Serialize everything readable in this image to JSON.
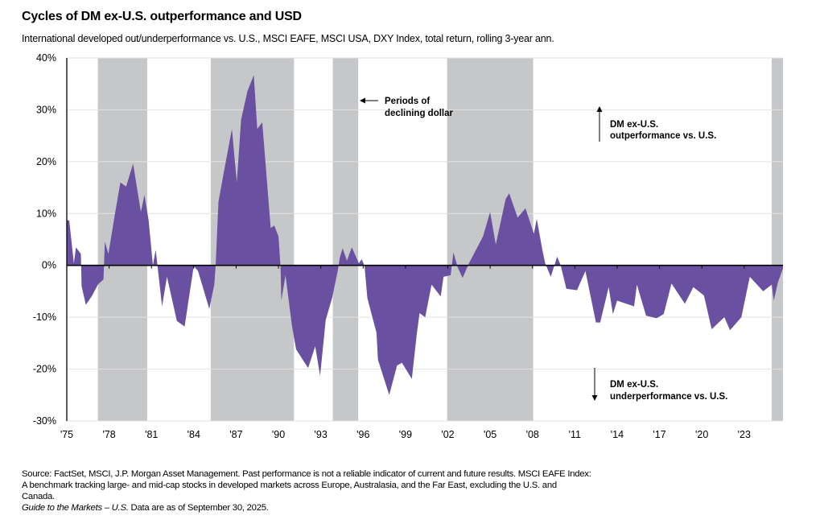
{
  "chart_data": {
    "type": "area",
    "title": "Cycles of DM ex-U.S. outperformance and USD",
    "subtitle": "International developed out/underperformance vs. U.S., MSCI EAFE, MSCI USA, DXY Index, total return, rolling 3-year ann.",
    "xlabel": "",
    "ylabel": "",
    "xlim": [
      1975,
      2025.75
    ],
    "ylim": [
      -30,
      40
    ],
    "grid": true,
    "y_ticks": [
      40,
      30,
      20,
      10,
      0,
      -10,
      -20,
      -30
    ],
    "y_tick_labels": [
      "40%",
      "30%",
      "20%",
      "10%",
      "0%",
      "-10%",
      "-20%",
      "-30%"
    ],
    "x_ticks": [
      1975,
      1978,
      1981,
      1984,
      1987,
      1990,
      1993,
      1996,
      1999,
      2002,
      2005,
      2008,
      2011,
      2014,
      2017,
      2020,
      2023
    ],
    "x_tick_labels": [
      "'75",
      "'78",
      "'81",
      "'84",
      "'87",
      "'90",
      "'93",
      "'96",
      "'99",
      "'02",
      "'05",
      "'08",
      "'11",
      "'14",
      "'17",
      "'20",
      "'23"
    ],
    "shaded_periods_label": "Periods of declining dollar",
    "shaded_periods": [
      [
        1977.2,
        1980.7
      ],
      [
        1985.2,
        1991.1
      ],
      [
        1993.85,
        1995.65
      ],
      [
        2001.95,
        2008.05
      ],
      [
        2024.95,
        2025.75
      ]
    ],
    "series": [
      {
        "name": "DM ex-U.S. relative performance vs. U.S. (%)",
        "color": "#6a50a0",
        "points": [
          [
            1975.0,
            8.7
          ],
          [
            1975.17,
            8.7
          ],
          [
            1975.5,
            0.4
          ],
          [
            1975.65,
            3.5
          ],
          [
            1976.0,
            2.2
          ],
          [
            1976.05,
            -4
          ],
          [
            1976.35,
            -7.6
          ],
          [
            1976.8,
            -5.8
          ],
          [
            1977.2,
            -3.7
          ],
          [
            1977.6,
            -2.7
          ],
          [
            1977.7,
            4.6
          ],
          [
            1977.95,
            2.2
          ],
          [
            1978.4,
            9.7
          ],
          [
            1978.8,
            16
          ],
          [
            1979.2,
            15.2
          ],
          [
            1979.7,
            19.6
          ],
          [
            1980.25,
            10.3
          ],
          [
            1980.5,
            13.6
          ],
          [
            1980.8,
            8.7
          ],
          [
            1981.1,
            0
          ],
          [
            1981.3,
            3
          ],
          [
            1981.45,
            -0.6
          ],
          [
            1981.75,
            -7.9
          ],
          [
            1982.1,
            -2.2
          ],
          [
            1982.8,
            -10.7
          ],
          [
            1983.35,
            -11.8
          ],
          [
            1984.0,
            -0.1
          ],
          [
            1984.3,
            -1.1
          ],
          [
            1985.1,
            -8.4
          ],
          [
            1985.45,
            -3.7
          ],
          [
            1985.55,
            0
          ],
          [
            1985.75,
            12.3
          ],
          [
            1986.2,
            19
          ],
          [
            1986.7,
            26.3
          ],
          [
            1987.05,
            16
          ],
          [
            1987.35,
            28.1
          ],
          [
            1987.8,
            33.6
          ],
          [
            1988.25,
            36.7
          ],
          [
            1988.5,
            26.3
          ],
          [
            1988.85,
            27.6
          ],
          [
            1989.45,
            7.2
          ],
          [
            1989.7,
            7.7
          ],
          [
            1990.0,
            5.6
          ],
          [
            1990.15,
            -0.4
          ],
          [
            1990.2,
            -6.8
          ],
          [
            1990.5,
            -1.9
          ],
          [
            1990.95,
            -11.5
          ],
          [
            1991.25,
            -16.2
          ],
          [
            1992.1,
            -19.8
          ],
          [
            1992.6,
            -15.6
          ],
          [
            1992.95,
            -21.3
          ],
          [
            1993.35,
            -10.5
          ],
          [
            1993.8,
            -6.3
          ],
          [
            1994.2,
            -1.1
          ],
          [
            1994.35,
            1.5
          ],
          [
            1994.55,
            3.3
          ],
          [
            1994.85,
            0.9
          ],
          [
            1995.2,
            3.5
          ],
          [
            1995.7,
            0.4
          ],
          [
            1995.9,
            1.2
          ],
          [
            1996.1,
            -0.1
          ],
          [
            1996.3,
            -6.3
          ],
          [
            1996.95,
            -13
          ],
          [
            1997.05,
            -18.2
          ],
          [
            1997.85,
            -25
          ],
          [
            1998.4,
            -19.3
          ],
          [
            1998.75,
            -18.8
          ],
          [
            1999.45,
            -21.9
          ],
          [
            1999.8,
            -13.3
          ],
          [
            2000.0,
            -9.2
          ],
          [
            2000.4,
            -10
          ],
          [
            2000.85,
            -3.7
          ],
          [
            2001.5,
            -6
          ],
          [
            2001.7,
            -2.2
          ],
          [
            2002.2,
            -1.9
          ],
          [
            2002.4,
            2.5
          ],
          [
            2002.7,
            -0.4
          ],
          [
            2003.05,
            -2.4
          ],
          [
            2003.5,
            0.4
          ],
          [
            2004.5,
            5.6
          ],
          [
            2005.0,
            10.3
          ],
          [
            2005.4,
            4
          ],
          [
            2006.1,
            12.8
          ],
          [
            2006.35,
            13.9
          ],
          [
            2006.95,
            9.2
          ],
          [
            2007.5,
            11
          ],
          [
            2008.1,
            6.1
          ],
          [
            2008.3,
            9
          ],
          [
            2008.7,
            3
          ],
          [
            2008.9,
            0.4
          ],
          [
            2009.3,
            -2.2
          ],
          [
            2009.75,
            1.7
          ],
          [
            2010.0,
            0
          ],
          [
            2010.4,
            -4.5
          ],
          [
            2011.15,
            -4.8
          ],
          [
            2011.75,
            -1.1
          ],
          [
            2012.5,
            -11
          ],
          [
            2012.8,
            -11
          ],
          [
            2013.4,
            -4.2
          ],
          [
            2013.7,
            -9.4
          ],
          [
            2014.0,
            -6.8
          ],
          [
            2015.2,
            -7.9
          ],
          [
            2015.4,
            -3.7
          ],
          [
            2016.05,
            -9.7
          ],
          [
            2016.8,
            -10.2
          ],
          [
            2017.3,
            -9.4
          ],
          [
            2017.85,
            -3.5
          ],
          [
            2018.8,
            -7.4
          ],
          [
            2019.4,
            -4.2
          ],
          [
            2020.15,
            -5.8
          ],
          [
            2020.7,
            -12.3
          ],
          [
            2021.6,
            -10
          ],
          [
            2022.0,
            -12.5
          ],
          [
            2022.8,
            -10
          ],
          [
            2023.4,
            -2.2
          ],
          [
            2024.35,
            -5
          ],
          [
            2024.95,
            -3.7
          ],
          [
            2025.1,
            -6.8
          ],
          [
            2025.4,
            -3.2
          ],
          [
            2025.75,
            -0.6
          ]
        ]
      }
    ],
    "annotations": {
      "up_line1": "DM ex-U.S.",
      "up_line2": "outperformance vs. U.S.",
      "down_line1": "DM ex-U.S.",
      "down_line2": "underperformance vs. U.S.",
      "dollar_line1": "Periods of",
      "dollar_line2": "declining dollar"
    },
    "colors": {
      "area": "#6a50a0",
      "shade": "#c6c7c9",
      "grid": "#e2e2e2"
    }
  },
  "footer": {
    "source_line1": "Source: FactSet, MSCI, J.P. Morgan Asset Management. Past performance is not a reliable indicator of current and future results. MSCI EAFE Index:",
    "source_line2": "A benchmark tracking large- and mid-cap stocks in developed markets across Europe, Australasia, and the Far East, excluding the U.S. and",
    "source_line3": "Canada.",
    "guide_italic": "Guide to the Markets – U.S.",
    "asof": " Data are as of September 30, 2025."
  }
}
